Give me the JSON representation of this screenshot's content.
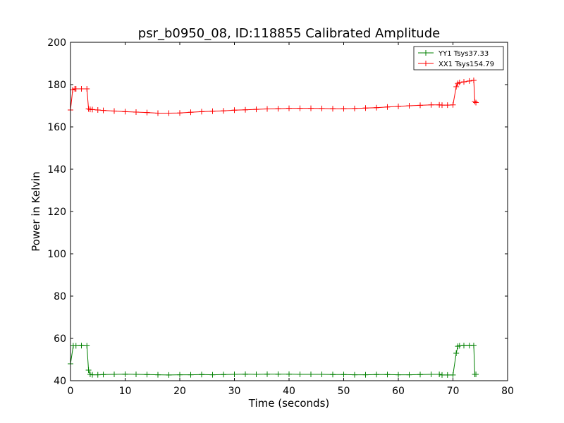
{
  "chart_data": {
    "type": "line",
    "title": "psr_b0950_08, ID:118855 Calibrated Amplitude",
    "xlabel": "Time (seconds)",
    "ylabel": "Power in Kelvin",
    "xlim": [
      0,
      80
    ],
    "ylim": [
      40,
      200
    ],
    "xticks": [
      "0",
      "10",
      "20",
      "30",
      "40",
      "50",
      "60",
      "70",
      "80"
    ],
    "yticks": [
      "40",
      "60",
      "80",
      "100",
      "120",
      "140",
      "160",
      "180",
      "200"
    ],
    "grid": false,
    "legend_position": "top-right",
    "series": [
      {
        "name": "YY1 Tsys37.33",
        "color": "#008000",
        "marker": "+",
        "x": [
          0,
          0.5,
          1,
          2,
          3,
          3.3,
          3.6,
          4,
          5,
          6,
          8,
          10,
          12,
          14,
          16,
          18,
          20,
          22,
          24,
          26,
          28,
          30,
          32,
          34,
          36,
          38,
          40,
          42,
          44,
          46,
          48,
          50,
          52,
          54,
          56,
          58,
          60,
          62,
          64,
          66,
          67.5,
          68,
          69,
          70,
          70.6,
          70.9,
          71.2,
          72,
          73,
          73.8,
          74,
          74.2
        ],
        "y": [
          48,
          56.5,
          56.5,
          56.6,
          56.5,
          45,
          43,
          42.8,
          42.8,
          42.9,
          43,
          43.1,
          43,
          42.9,
          42.8,
          42.7,
          42.8,
          42.8,
          42.9,
          42.8,
          42.9,
          43,
          43.1,
          43,
          43.1,
          43.1,
          43.1,
          43,
          43,
          43,
          42.9,
          42.9,
          42.8,
          42.8,
          42.9,
          42.9,
          42.8,
          42.8,
          42.9,
          43,
          43,
          42.7,
          42.7,
          42.7,
          53,
          56.3,
          56.5,
          56.6,
          56.6,
          56.6,
          43,
          43
        ]
      },
      {
        "name": "XX1 Tsys154.79",
        "color": "#ff0000",
        "marker": "+",
        "x": [
          0,
          0.4,
          0.8,
          1,
          2,
          3,
          3.3,
          3.6,
          4,
          5,
          6,
          8,
          10,
          12,
          14,
          16,
          18,
          20,
          22,
          24,
          26,
          28,
          30,
          32,
          34,
          36,
          38,
          40,
          42,
          44,
          46,
          48,
          50,
          52,
          54,
          56,
          58,
          60,
          62,
          64,
          66,
          67.5,
          68,
          69,
          70,
          70.6,
          70.9,
          71.2,
          72,
          73,
          73.8,
          74,
          74.2
        ],
        "y": [
          168,
          177.5,
          178,
          178,
          178,
          178,
          168.5,
          168.3,
          168.2,
          168,
          167.8,
          167.5,
          167.2,
          167,
          166.8,
          166.5,
          166.5,
          166.6,
          166.9,
          167.2,
          167.4,
          167.6,
          167.9,
          168.1,
          168.3,
          168.5,
          168.6,
          168.8,
          168.8,
          168.8,
          168.7,
          168.6,
          168.6,
          168.7,
          168.9,
          169.1,
          169.4,
          169.7,
          170,
          170.2,
          170.4,
          170.4,
          170.3,
          170.3,
          170.4,
          179,
          180.6,
          181,
          181.3,
          181.7,
          182,
          172,
          171.5
        ]
      }
    ]
  }
}
